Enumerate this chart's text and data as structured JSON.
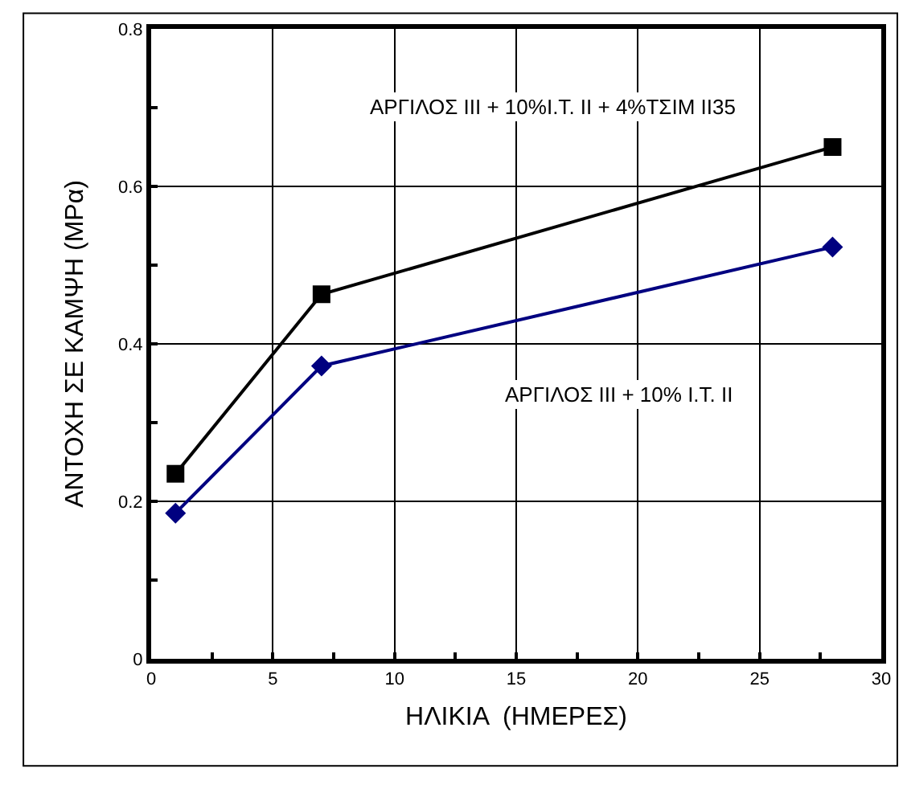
{
  "chart_data": {
    "type": "line",
    "xlabel": "ΗΛΙΚΙΑ  (ΗΜΕΡΕΣ)",
    "ylabel": "ΑΝΤΟΧΗ ΣΕ ΚΑΜΨΗ (MPα)",
    "x": [
      1,
      7,
      28
    ],
    "series": [
      {
        "name": "ΑΡΓΙΛΟΣ ΙΙΙ + 10%Ι.Τ. ΙΙ + 4%ΤΣΙΜ ΙΙ35",
        "color": "#000000",
        "marker": "square",
        "values": [
          0.235,
          0.463,
          0.65
        ]
      },
      {
        "name": "ΑΡΓΙΛΟΣ ΙΙΙ + 10% Ι.Τ. ΙΙ",
        "color": "#000080",
        "marker": "diamond",
        "values": [
          0.185,
          0.372,
          0.523
        ]
      }
    ],
    "xlim": [
      0,
      30
    ],
    "xticks": [
      0,
      5,
      10,
      15,
      20,
      25,
      30
    ],
    "ylim": [
      0,
      0.8
    ],
    "yticks": [
      0,
      0.2,
      0.4,
      0.6,
      0.8
    ],
    "grid": true,
    "legend": false
  }
}
